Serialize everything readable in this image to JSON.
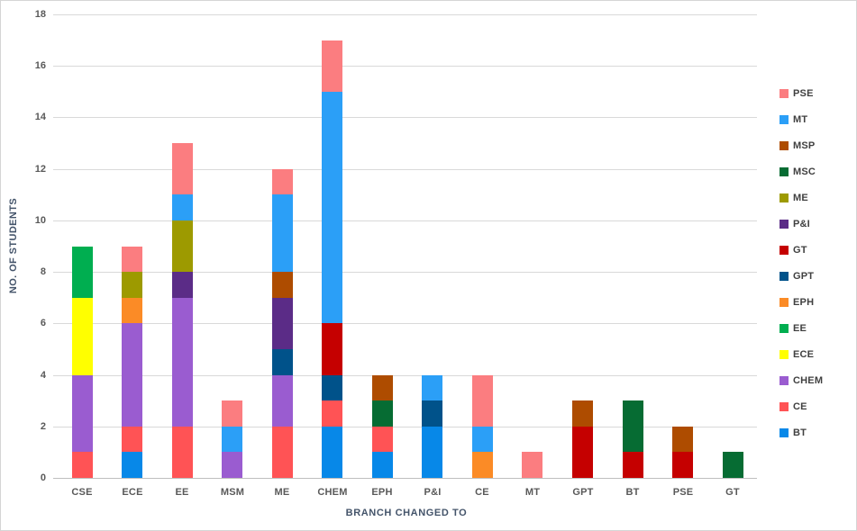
{
  "chart_data": {
    "type": "bar",
    "stacked": true,
    "title": "",
    "xlabel": "BRANCH CHANGED TO",
    "ylabel": "NO. OF STUDENTS",
    "ylim": [
      0,
      18
    ],
    "yticks": [
      0,
      2,
      4,
      6,
      8,
      10,
      12,
      14,
      16,
      18
    ],
    "grid": true,
    "legend_position": "right",
    "legend_items_top_to_bottom": [
      "PSE",
      "MT",
      "MSP",
      "MSC",
      "ME",
      "P&I",
      "GT",
      "GPT",
      "EPH",
      "EE",
      "ECE",
      "CHEM",
      "CE",
      "BT"
    ],
    "categories": [
      "CSE",
      "ECE",
      "EE",
      "MSM",
      "ME",
      "CHEM",
      "EPH",
      "P&I",
      "CE",
      "MT",
      "GPT",
      "BT",
      "PSE",
      "GT"
    ],
    "series": [
      {
        "name": "BT",
        "color": "#0788e8",
        "values": [
          0,
          1,
          0,
          0,
          0,
          2,
          1,
          2,
          0,
          0,
          0,
          0,
          0,
          0
        ]
      },
      {
        "name": "CE",
        "color": "#ff5355",
        "values": [
          1,
          1,
          2,
          0,
          2,
          1,
          1,
          0,
          0,
          0,
          0,
          0,
          0,
          0
        ]
      },
      {
        "name": "CHEM",
        "color": "#9a5cd0",
        "values": [
          3,
          4,
          5,
          1,
          2,
          0,
          0,
          0,
          0,
          0,
          0,
          0,
          0,
          0
        ]
      },
      {
        "name": "ECE",
        "color": "#ffff00",
        "values": [
          3,
          0,
          0,
          0,
          0,
          0,
          0,
          0,
          0,
          0,
          0,
          0,
          0,
          0
        ]
      },
      {
        "name": "EE",
        "color": "#00ae50",
        "values": [
          2,
          0,
          0,
          0,
          0,
          0,
          0,
          0,
          0,
          0,
          0,
          0,
          0,
          0
        ]
      },
      {
        "name": "EPH",
        "color": "#fb8b26",
        "values": [
          0,
          1,
          0,
          0,
          0,
          0,
          0,
          0,
          1,
          0,
          0,
          0,
          0,
          0
        ]
      },
      {
        "name": "GPT",
        "color": "#00528a",
        "values": [
          0,
          0,
          0,
          0,
          1,
          1,
          0,
          1,
          0,
          0,
          0,
          0,
          0,
          0
        ]
      },
      {
        "name": "GT",
        "color": "#c50000",
        "values": [
          0,
          0,
          0,
          0,
          0,
          2,
          0,
          0,
          0,
          0,
          2,
          1,
          1,
          0
        ]
      },
      {
        "name": "P&I",
        "color": "#5b2c87",
        "values": [
          0,
          0,
          1,
          0,
          2,
          0,
          0,
          0,
          0,
          0,
          0,
          0,
          0,
          0
        ]
      },
      {
        "name": "ME",
        "color": "#9d9a00",
        "values": [
          0,
          1,
          2,
          0,
          0,
          0,
          0,
          0,
          0,
          0,
          0,
          0,
          0,
          0
        ]
      },
      {
        "name": "MSC",
        "color": "#066c33",
        "values": [
          0,
          0,
          0,
          0,
          0,
          0,
          1,
          0,
          0,
          0,
          0,
          2,
          0,
          1
        ]
      },
      {
        "name": "MSP",
        "color": "#ae4c00",
        "values": [
          0,
          0,
          0,
          0,
          1,
          0,
          1,
          0,
          0,
          0,
          1,
          0,
          1,
          0
        ]
      },
      {
        "name": "MT",
        "color": "#2b9ff7",
        "values": [
          0,
          0,
          1,
          1,
          3,
          9,
          0,
          1,
          1,
          0,
          0,
          0,
          0,
          0
        ]
      },
      {
        "name": "PSE",
        "color": "#fb7d80",
        "values": [
          0,
          1,
          2,
          1,
          1,
          2,
          0,
          0,
          2,
          1,
          0,
          0,
          0,
          0
        ]
      }
    ],
    "category_totals": {
      "CSE": 9,
      "ECE": 9,
      "EE": 13,
      "MSM": 3,
      "ME": 12,
      "CHEM": 17,
      "EPH": 4,
      "P&I": 4,
      "CE": 4,
      "MT": 1,
      "GPT": 3,
      "BT": 3,
      "PSE": 2,
      "GT": 1
    }
  }
}
